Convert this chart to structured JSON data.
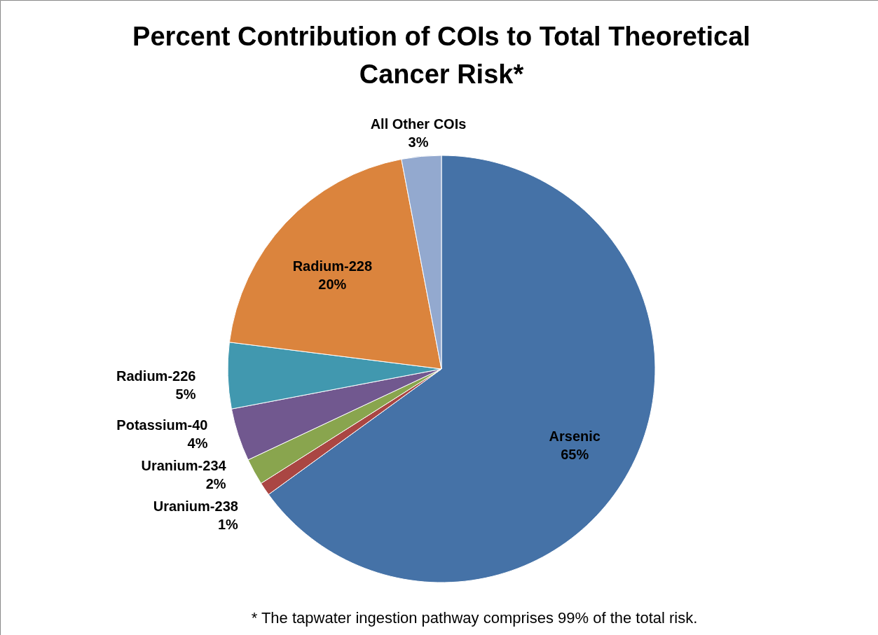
{
  "chart_data": {
    "type": "pie",
    "title": "Percent Contribution of COIs to Total Theoretical Cancer Risk*",
    "categories": [
      "Arsenic",
      "Uranium-238",
      "Uranium-234",
      "Potassium-40",
      "Radium-226",
      "Radium-228",
      "All Other COIs"
    ],
    "values": [
      65,
      1,
      2,
      4,
      5,
      20,
      3
    ],
    "colors": [
      "#4572a7",
      "#aa4643",
      "#89a54e",
      "#71588f",
      "#4198af",
      "#db843d",
      "#93a9cf"
    ],
    "value_labels": [
      "65%",
      "1%",
      "2%",
      "4%",
      "5%",
      "20%",
      "3%"
    ],
    "annotations": [
      "* The tapwater ingestion pathway comprises 99% of the total risk."
    ]
  }
}
